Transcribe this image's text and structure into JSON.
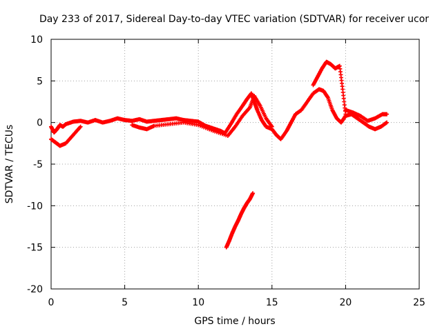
{
  "chart_data": {
    "type": "scatter",
    "title": "Day 233 of 2017, Sidereal Day-to-day VTEC variation (SDTVAR) for receiver ucor",
    "xlabel": "GPS time / hours",
    "ylabel": "SDTVAR / TECUs",
    "xlim": [
      0,
      25
    ],
    "ylim": [
      -20,
      10
    ],
    "xticks": [
      0,
      5,
      10,
      15,
      20,
      25
    ],
    "yticks": [
      -20,
      -15,
      -10,
      -5,
      0,
      5,
      10
    ],
    "grid": true,
    "marker": "plus",
    "series": [
      {
        "name": "main",
        "color": "#ff0000",
        "x": [
          0.0,
          0.2,
          0.4,
          0.6,
          0.8,
          1.0,
          1.5,
          2.0,
          2.5,
          3.0,
          3.5,
          4.0,
          4.5,
          5.0,
          5.5,
          6.0,
          6.5,
          7.0,
          7.5,
          8.0,
          8.5,
          9.0,
          9.5,
          10.0,
          10.5,
          11.0,
          11.5,
          11.8,
          12.2,
          12.6,
          13.0,
          13.3,
          13.6,
          13.8,
          14.0,
          14.3,
          14.6,
          15.0,
          15.3,
          15.6,
          16.0,
          16.3,
          16.6,
          17.0,
          17.4,
          17.8,
          18.2,
          18.5,
          18.8,
          19.1,
          19.4,
          19.7,
          20.0,
          20.4,
          20.8,
          21.2,
          21.6,
          22.0,
          22.4,
          22.8
        ],
        "y": [
          -0.5,
          -1.2,
          -0.8,
          -0.3,
          -0.5,
          -0.2,
          0.1,
          0.2,
          0.0,
          0.3,
          0.0,
          0.2,
          0.5,
          0.3,
          0.2,
          0.4,
          0.1,
          0.2,
          0.3,
          0.4,
          0.5,
          0.3,
          0.2,
          0.1,
          -0.4,
          -0.7,
          -1.0,
          -1.3,
          -0.2,
          1.0,
          2.0,
          2.8,
          3.5,
          2.5,
          1.5,
          0.3,
          -0.5,
          -0.8,
          -1.5,
          -2.0,
          -1.0,
          0.0,
          1.0,
          1.5,
          2.5,
          3.5,
          4.0,
          3.8,
          3.0,
          1.5,
          0.5,
          0.0,
          0.8,
          1.0,
          0.5,
          0.0,
          -0.5,
          -0.8,
          -0.5,
          0.0
        ]
      },
      {
        "name": "lower-branch",
        "color": "#ff0000",
        "x": [
          0.0,
          0.3,
          0.6,
          1.0,
          1.5,
          2.0
        ],
        "y": [
          -2.0,
          -2.4,
          -2.8,
          -2.5,
          -1.5,
          -0.5
        ]
      },
      {
        "name": "secondary-track",
        "color": "#ff0000",
        "x": [
          5.5,
          6.0,
          6.5,
          7.0,
          8.0,
          9.0,
          10.0,
          11.0,
          12.0,
          12.5,
          13.0,
          13.5,
          13.8,
          14.2,
          14.6,
          15.0
        ],
        "y": [
          -0.3,
          -0.6,
          -0.8,
          -0.4,
          -0.2,
          0.0,
          -0.3,
          -1.0,
          -1.6,
          -0.5,
          0.8,
          1.8,
          3.2,
          2.0,
          0.5,
          -0.5
        ]
      },
      {
        "name": "evening-peak",
        "color": "#ff0000",
        "x": [
          17.8,
          18.1,
          18.4,
          18.7,
          19.0,
          19.3,
          19.6,
          19.8,
          20.0
        ],
        "y": [
          4.5,
          5.5,
          6.5,
          7.3,
          7.0,
          6.5,
          6.8,
          4.0,
          1.0
        ]
      },
      {
        "name": "late-track",
        "color": "#ff0000",
        "x": [
          20.0,
          20.5,
          21.0,
          21.5,
          22.0,
          22.5,
          22.8
        ],
        "y": [
          1.5,
          1.2,
          0.8,
          0.2,
          0.5,
          1.0,
          1.0
        ]
      },
      {
        "name": "negative-arc",
        "color": "#ff0000",
        "x": [
          11.9,
          12.1,
          12.3,
          12.5,
          12.7,
          12.9,
          13.1,
          13.3,
          13.5,
          13.7
        ],
        "y": [
          -15.0,
          -14.2,
          -13.3,
          -12.5,
          -11.8,
          -11.0,
          -10.3,
          -9.7,
          -9.2,
          -8.5
        ]
      }
    ]
  }
}
